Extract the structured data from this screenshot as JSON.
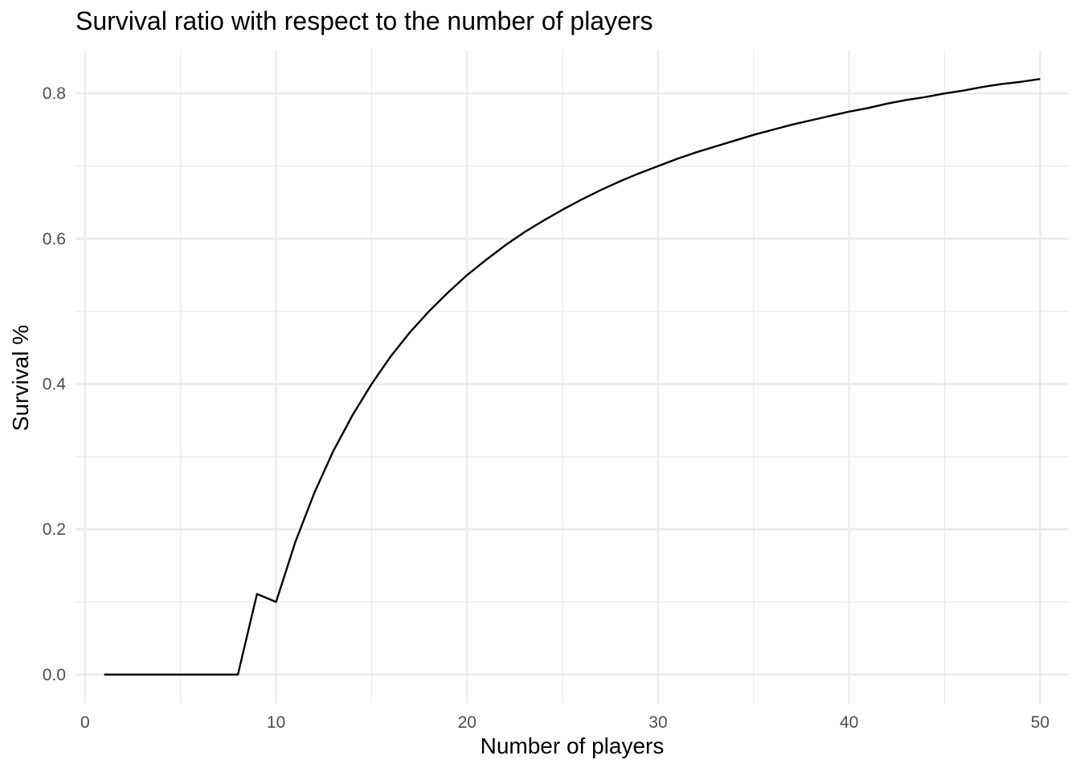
{
  "chart_data": {
    "type": "line",
    "title": "Survival ratio with respect to the number of players",
    "xlabel": "Number of players",
    "ylabel": "Survival %",
    "xlim": [
      -0.5,
      51.5
    ],
    "ylim": [
      -0.04,
      0.86
    ],
    "xticks": [
      0,
      10,
      20,
      30,
      40,
      50
    ],
    "xtick_labels": [
      "0",
      "10",
      "20",
      "30",
      "40",
      "50"
    ],
    "yticks": [
      0.0,
      0.2,
      0.4,
      0.6,
      0.8
    ],
    "ytick_labels": [
      "0.0",
      "0.2",
      "0.4",
      "0.6",
      "0.8"
    ],
    "x_minor_gridlines": [
      5,
      15,
      25,
      35,
      45
    ],
    "y_minor_gridlines": [
      0.1,
      0.3,
      0.5,
      0.7
    ],
    "grid": true,
    "legend": "none",
    "line_color": "#000000",
    "grid_color": "#ebebeb",
    "series": [
      {
        "x": [
          1,
          2,
          3,
          4,
          5,
          6,
          7,
          8,
          9,
          10,
          11,
          12,
          13,
          14,
          15,
          16,
          17,
          18,
          19,
          20,
          21,
          22,
          23,
          24,
          25,
          26,
          27,
          28,
          29,
          30,
          31,
          32,
          33,
          34,
          35,
          36,
          37,
          38,
          39,
          40,
          41,
          42,
          43,
          44,
          45,
          46,
          47,
          48,
          49,
          50
        ],
        "values": [
          0,
          0,
          0,
          0,
          0,
          0,
          0,
          0,
          0.111,
          0.1,
          0.182,
          0.25,
          0.308,
          0.357,
          0.4,
          0.438,
          0.471,
          0.5,
          0.526,
          0.55,
          0.571,
          0.591,
          0.609,
          0.625,
          0.64,
          0.654,
          0.667,
          0.679,
          0.69,
          0.7,
          0.71,
          0.719,
          0.727,
          0.735,
          0.743,
          0.75,
          0.757,
          0.763,
          0.769,
          0.775,
          0.78,
          0.786,
          0.791,
          0.795,
          0.8,
          0.804,
          0.809,
          0.813,
          0.816,
          0.82
        ]
      }
    ]
  }
}
